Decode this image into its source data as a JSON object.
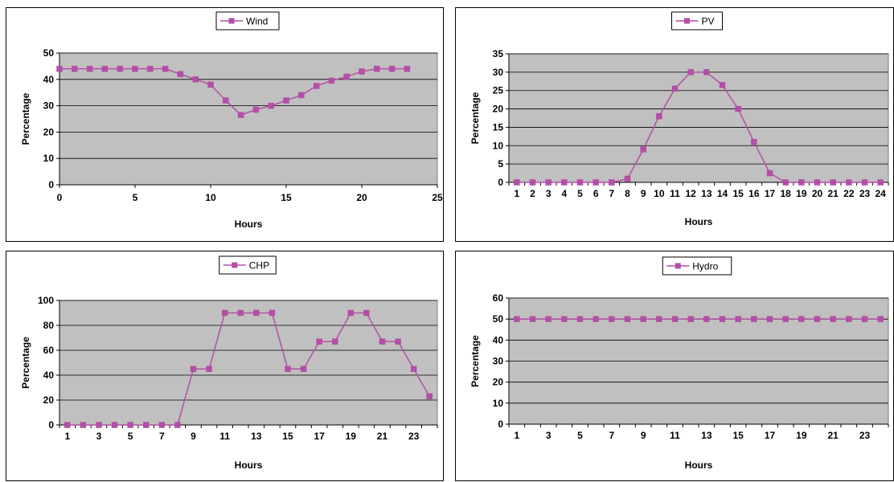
{
  "colors": {
    "series": "#b34fa6",
    "plot_bg": "#c0c0c0"
  },
  "chart_data": [
    {
      "type": "line",
      "legend": "Wind",
      "legend_position": "top",
      "xlabel": "Hours",
      "ylabel": "Percentage",
      "xlim": [
        0,
        25
      ],
      "ylim": [
        0,
        50
      ],
      "x_ticks": [
        "0",
        "5",
        "10",
        "15",
        "20",
        "25"
      ],
      "y_ticks": [
        "0",
        "10",
        "20",
        "30",
        "40",
        "50"
      ],
      "x_scale": "numeric",
      "grid": true,
      "series": [
        {
          "name": "Wind",
          "x": [
            0,
            1,
            2,
            3,
            4,
            5,
            6,
            7,
            8,
            9,
            10,
            11,
            12,
            13,
            14,
            15,
            16,
            17,
            18,
            19,
            20,
            21,
            22,
            23
          ],
          "values": [
            44,
            44,
            44,
            44,
            44,
            44,
            44,
            44,
            42,
            40,
            38,
            32,
            26.5,
            28.5,
            30,
            32,
            34,
            37.5,
            39.5,
            41,
            43,
            44,
            44,
            44
          ]
        }
      ]
    },
    {
      "type": "line",
      "legend": "PV",
      "legend_position": "top",
      "xlabel": "Hours",
      "ylabel": "Percentage",
      "ylim": [
        0,
        35
      ],
      "categories": [
        "1",
        "2",
        "3",
        "4",
        "5",
        "6",
        "7",
        "8",
        "9",
        "10",
        "11",
        "12",
        "13",
        "14",
        "15",
        "16",
        "17",
        "18",
        "19",
        "20",
        "21",
        "22",
        "23",
        "24"
      ],
      "x_ticks": [
        "1",
        "2",
        "3",
        "4",
        "5",
        "6",
        "7",
        "8",
        "9",
        "10",
        "11",
        "12",
        "13",
        "14",
        "15",
        "16",
        "17",
        "18",
        "19",
        "20",
        "21",
        "22",
        "23",
        "24"
      ],
      "y_ticks": [
        "0",
        "5",
        "10",
        "15",
        "20",
        "25",
        "30",
        "35"
      ],
      "x_scale": "category",
      "grid": true,
      "series": [
        {
          "name": "PV",
          "values": [
            0,
            0,
            0,
            0,
            0,
            0,
            0,
            1,
            9,
            18,
            25.5,
            30,
            30,
            26.5,
            20,
            11,
            2.5,
            0,
            0,
            0,
            0,
            0,
            0,
            0
          ]
        }
      ]
    },
    {
      "type": "line",
      "legend": "CHP",
      "legend_position": "top",
      "xlabel": "Hours",
      "ylabel": "Percentage",
      "ylim": [
        0,
        100
      ],
      "categories": [
        "1",
        "2",
        "3",
        "4",
        "5",
        "6",
        "7",
        "8",
        "9",
        "10",
        "11",
        "12",
        "13",
        "14",
        "15",
        "16",
        "17",
        "18",
        "19",
        "20",
        "21",
        "22",
        "23",
        "24"
      ],
      "x_ticks": [
        "1",
        "",
        "3",
        "",
        "5",
        "",
        "7",
        "",
        "9",
        "",
        "11",
        "",
        "13",
        "",
        "15",
        "",
        "17",
        "",
        "19",
        "",
        "21",
        "",
        "23",
        ""
      ],
      "y_ticks": [
        "0",
        "20",
        "40",
        "60",
        "80",
        "100"
      ],
      "x_scale": "category",
      "grid": true,
      "series": [
        {
          "name": "CHP",
          "values": [
            0,
            0,
            0,
            0,
            0,
            0,
            0,
            0,
            45,
            45,
            90,
            90,
            90,
            90,
            45,
            45,
            67,
            67,
            90,
            90,
            67,
            67,
            45,
            23
          ]
        }
      ]
    },
    {
      "type": "line",
      "legend": "Hydro",
      "legend_position": "top",
      "xlabel": "Hours",
      "ylabel": "Percentage",
      "ylim": [
        0,
        60
      ],
      "categories": [
        "1",
        "2",
        "3",
        "4",
        "5",
        "6",
        "7",
        "8",
        "9",
        "10",
        "11",
        "12",
        "13",
        "14",
        "15",
        "16",
        "17",
        "18",
        "19",
        "20",
        "21",
        "22",
        "23",
        "24"
      ],
      "x_ticks": [
        "1",
        "",
        "3",
        "",
        "5",
        "",
        "7",
        "",
        "9",
        "",
        "11",
        "",
        "13",
        "",
        "15",
        "",
        "17",
        "",
        "19",
        "",
        "21",
        "",
        "23",
        ""
      ],
      "y_ticks": [
        "0",
        "10",
        "20",
        "30",
        "40",
        "50",
        "60"
      ],
      "x_scale": "category",
      "grid": true,
      "series": [
        {
          "name": "Hydro",
          "values": [
            50,
            50,
            50,
            50,
            50,
            50,
            50,
            50,
            50,
            50,
            50,
            50,
            50,
            50,
            50,
            50,
            50,
            50,
            50,
            50,
            50,
            50,
            50,
            50
          ]
        }
      ]
    }
  ]
}
